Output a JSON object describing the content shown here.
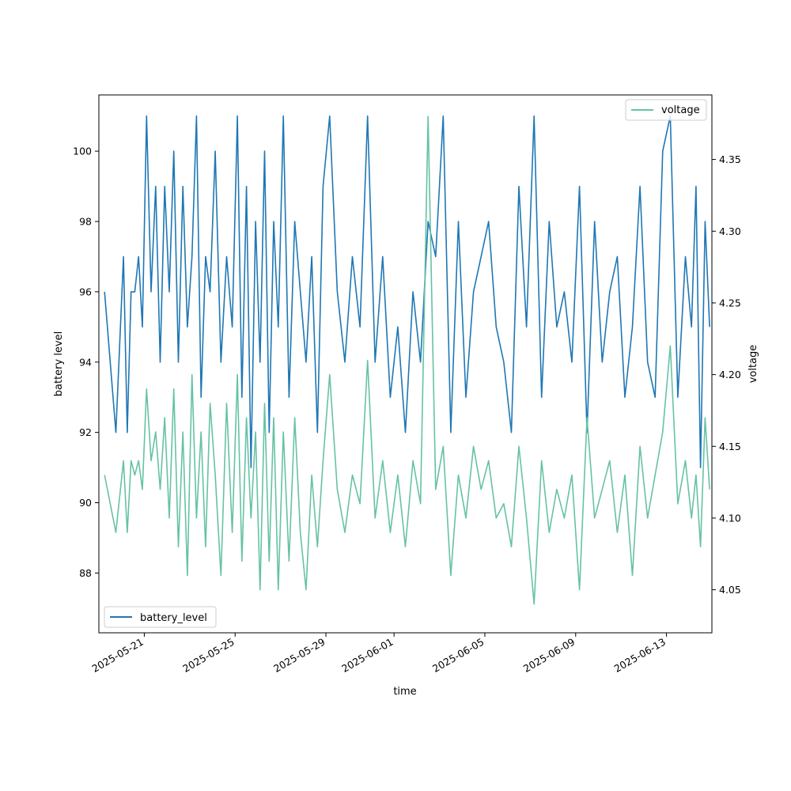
{
  "chart_data": {
    "type": "line",
    "title": "",
    "xlabel": "time",
    "ylabel_left": "battery level",
    "ylabel_right": "voltage",
    "x_range": [
      "2025-05-19",
      "2025-06-15"
    ],
    "x_ticks": [
      "2025-05-21",
      "2025-05-25",
      "2025-05-29",
      "2025-06-01",
      "2025-06-05",
      "2025-06-09",
      "2025-06-13"
    ],
    "ylim_left": [
      86.3,
      101.6
    ],
    "ylim_right": [
      4.02,
      4.395
    ],
    "yticks_left": [
      "88",
      "90",
      "92",
      "94",
      "96",
      "98",
      "100"
    ],
    "yticks_right": [
      "4.05",
      "4.10",
      "4.15",
      "4.20",
      "4.25",
      "4.30",
      "4.35"
    ],
    "grid": false,
    "series": [
      {
        "name": "battery_level",
        "axis": "left",
        "color": "#1f77b4",
        "legend_position": "lower-left",
        "x": [
          "2025-05-19",
          "2025-05-19",
          "2025-05-20",
          "2025-05-20",
          "2025-05-20",
          "2025-05-20",
          "2025-05-20",
          "2025-05-20",
          "2025-05-21",
          "2025-05-21",
          "2025-05-21",
          "2025-05-21",
          "2025-05-21",
          "2025-05-22",
          "2025-05-22",
          "2025-05-22",
          "2025-05-22",
          "2025-05-22",
          "2025-05-23",
          "2025-05-23",
          "2025-05-23",
          "2025-05-23",
          "2025-05-23",
          "2025-05-24",
          "2025-05-24",
          "2025-05-24",
          "2025-05-24",
          "2025-05-25",
          "2025-05-25",
          "2025-05-25",
          "2025-05-25",
          "2025-05-25",
          "2025-05-26",
          "2025-05-26",
          "2025-05-26",
          "2025-05-26",
          "2025-05-26",
          "2025-05-27",
          "2025-05-27",
          "2025-05-27",
          "2025-05-27",
          "2025-05-28",
          "2025-05-28",
          "2025-05-28",
          "2025-05-28",
          "2025-05-29",
          "2025-05-29",
          "2025-05-29",
          "2025-05-30",
          "2025-05-30",
          "2025-05-30",
          "2025-05-31",
          "2025-05-31",
          "2025-05-31",
          "2025-06-01",
          "2025-06-01",
          "2025-06-01",
          "2025-06-02",
          "2025-06-02",
          "2025-06-02",
          "2025-06-03",
          "2025-06-03",
          "2025-06-03",
          "2025-06-04",
          "2025-06-04",
          "2025-06-04",
          "2025-06-05",
          "2025-06-05",
          "2025-06-05",
          "2025-06-06",
          "2025-06-06",
          "2025-06-06",
          "2025-06-07",
          "2025-06-07",
          "2025-06-07",
          "2025-06-08",
          "2025-06-08",
          "2025-06-08",
          "2025-06-09",
          "2025-06-09",
          "2025-06-09",
          "2025-06-10",
          "2025-06-10",
          "2025-06-10",
          "2025-06-11",
          "2025-06-11",
          "2025-06-11",
          "2025-06-12",
          "2025-06-12",
          "2025-06-12",
          "2025-06-13",
          "2025-06-13",
          "2025-06-13",
          "2025-06-14",
          "2025-06-14",
          "2025-06-14",
          "2025-06-14",
          "2025-06-14"
        ],
        "values": [
          96,
          92,
          97,
          92,
          96,
          96,
          97,
          95,
          101,
          96,
          99,
          94,
          99,
          96,
          100,
          94,
          99,
          95,
          97,
          101,
          93,
          97,
          96,
          100,
          94,
          97,
          95,
          101,
          93,
          99,
          91,
          98,
          94,
          100,
          92,
          98,
          95,
          101,
          93,
          98,
          96,
          94,
          97,
          92,
          99,
          101,
          96,
          94,
          97,
          95,
          101,
          94,
          97,
          93,
          95,
          92,
          96,
          94,
          98,
          97,
          101,
          92,
          98,
          93,
          96,
          97,
          98,
          95,
          94,
          92,
          99,
          95,
          101,
          93,
          98,
          95,
          96,
          94,
          99,
          92,
          98,
          94,
          96,
          97,
          93,
          95,
          99,
          94,
          93,
          100,
          101,
          93,
          97,
          95,
          99,
          91,
          98,
          95
        ]
      },
      {
        "name": "voltage",
        "axis": "right",
        "color": "#66c2a5",
        "legend_position": "upper-right",
        "x": [
          "2025-05-19",
          "2025-05-19",
          "2025-05-20",
          "2025-05-20",
          "2025-05-20",
          "2025-05-20",
          "2025-05-20",
          "2025-05-20",
          "2025-05-21",
          "2025-05-21",
          "2025-05-21",
          "2025-05-21",
          "2025-05-21",
          "2025-05-22",
          "2025-05-22",
          "2025-05-22",
          "2025-05-22",
          "2025-05-22",
          "2025-05-23",
          "2025-05-23",
          "2025-05-23",
          "2025-05-23",
          "2025-05-23",
          "2025-05-24",
          "2025-05-24",
          "2025-05-24",
          "2025-05-24",
          "2025-05-25",
          "2025-05-25",
          "2025-05-25",
          "2025-05-25",
          "2025-05-25",
          "2025-05-26",
          "2025-05-26",
          "2025-05-26",
          "2025-05-26",
          "2025-05-26",
          "2025-05-27",
          "2025-05-27",
          "2025-05-27",
          "2025-05-27",
          "2025-05-28",
          "2025-05-28",
          "2025-05-28",
          "2025-05-28",
          "2025-05-29",
          "2025-05-29",
          "2025-05-29",
          "2025-05-30",
          "2025-05-30",
          "2025-05-30",
          "2025-05-31",
          "2025-05-31",
          "2025-05-31",
          "2025-06-01",
          "2025-06-01",
          "2025-06-01",
          "2025-06-02",
          "2025-06-02",
          "2025-06-02",
          "2025-06-03",
          "2025-06-03",
          "2025-06-03",
          "2025-06-04",
          "2025-06-04",
          "2025-06-04",
          "2025-06-05",
          "2025-06-05",
          "2025-06-05",
          "2025-06-06",
          "2025-06-06",
          "2025-06-06",
          "2025-06-07",
          "2025-06-07",
          "2025-06-07",
          "2025-06-08",
          "2025-06-08",
          "2025-06-08",
          "2025-06-09",
          "2025-06-09",
          "2025-06-09",
          "2025-06-10",
          "2025-06-10",
          "2025-06-10",
          "2025-06-11",
          "2025-06-11",
          "2025-06-11",
          "2025-06-12",
          "2025-06-12",
          "2025-06-12",
          "2025-06-13",
          "2025-06-13",
          "2025-06-13",
          "2025-06-14",
          "2025-06-14",
          "2025-06-14",
          "2025-06-14",
          "2025-06-14"
        ],
        "values": [
          4.13,
          4.09,
          4.14,
          4.09,
          4.14,
          4.13,
          4.14,
          4.12,
          4.19,
          4.14,
          4.16,
          4.12,
          4.17,
          4.1,
          4.19,
          4.08,
          4.16,
          4.06,
          4.2,
          4.1,
          4.16,
          4.08,
          4.18,
          4.13,
          4.06,
          4.18,
          4.09,
          4.2,
          4.07,
          4.17,
          4.1,
          4.16,
          4.05,
          4.18,
          4.07,
          4.17,
          4.05,
          4.16,
          4.07,
          4.17,
          4.09,
          4.05,
          4.13,
          4.08,
          4.14,
          4.2,
          4.12,
          4.09,
          4.13,
          4.11,
          4.21,
          4.1,
          4.14,
          4.09,
          4.13,
          4.08,
          4.14,
          4.11,
          4.38,
          4.12,
          4.15,
          4.06,
          4.13,
          4.1,
          4.15,
          4.12,
          4.14,
          4.1,
          4.11,
          4.08,
          4.15,
          4.1,
          4.04,
          4.14,
          4.09,
          4.12,
          4.1,
          4.13,
          4.05,
          4.17,
          4.1,
          4.12,
          4.14,
          4.09,
          4.13,
          4.06,
          4.15,
          4.1,
          4.13,
          4.16,
          4.22,
          4.11,
          4.14,
          4.1,
          4.13,
          4.08,
          4.17,
          4.12
        ]
      }
    ]
  }
}
